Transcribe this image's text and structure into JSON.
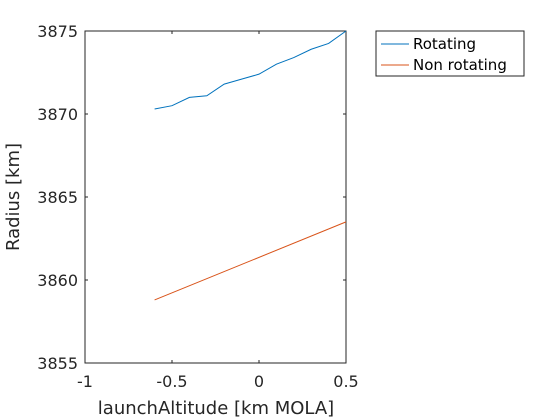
{
  "chart_data": {
    "type": "line",
    "xlabel": "launchAltitude [km MOLA]",
    "ylabel": "Radius [km]",
    "xlim": [
      -1,
      0.5
    ],
    "ylim": [
      3855,
      3875
    ],
    "xticks": [
      "-1",
      "-0.5",
      "0",
      "0.5"
    ],
    "xtick_values": [
      -1,
      -0.5,
      0,
      0.5
    ],
    "yticks": [
      "3855",
      "3860",
      "3865",
      "3870",
      "3875"
    ],
    "ytick_values": [
      3855,
      3860,
      3865,
      3870,
      3875
    ],
    "grid": false,
    "legend_position": "outside-top-right",
    "series": [
      {
        "name": "Rotating",
        "color": "#0072BD",
        "x": [
          -0.6,
          -0.5,
          -0.4,
          -0.3,
          -0.2,
          -0.1,
          0.0,
          0.1,
          0.2,
          0.3,
          0.4,
          0.5
        ],
        "y": [
          3870.3,
          3870.5,
          3871.0,
          3871.1,
          3871.8,
          3872.1,
          3872.4,
          3873.0,
          3873.4,
          3873.9,
          3874.25,
          3875.0
        ]
      },
      {
        "name": "Non rotating",
        "color": "#D95319",
        "x": [
          -0.6,
          0.5
        ],
        "y": [
          3858.8,
          3863.5
        ]
      }
    ]
  }
}
